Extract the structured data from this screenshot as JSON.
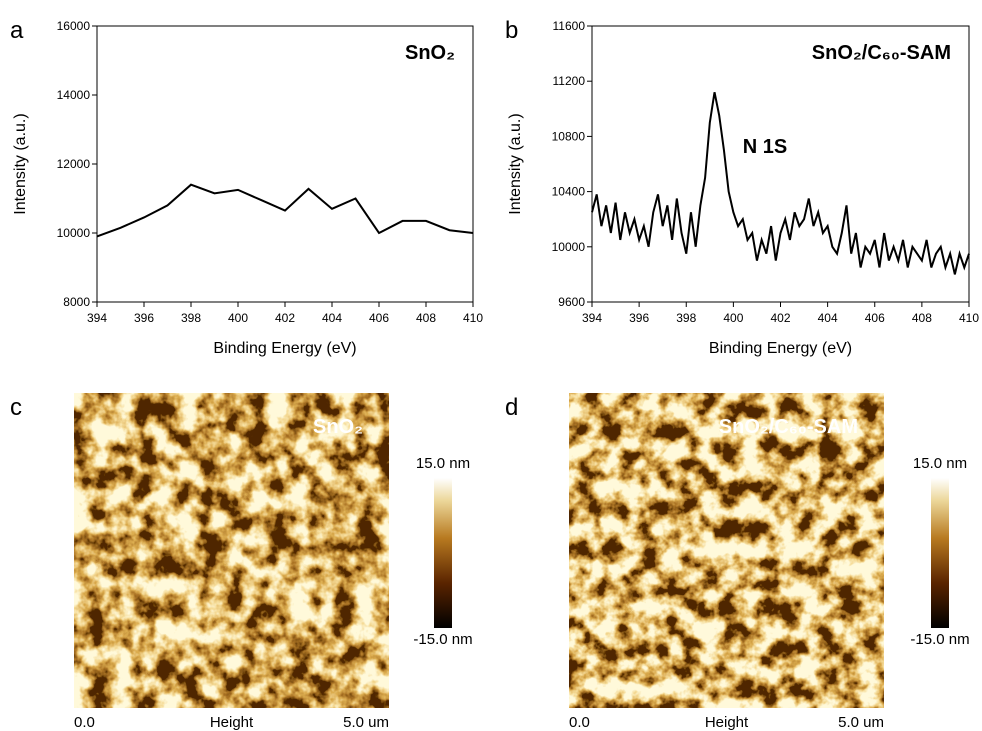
{
  "chart_data": [
    {
      "type": "line",
      "panel": "a",
      "title": "SnO₂",
      "xlabel": "Binding Energy (eV)",
      "ylabel": "Intensity (a.u.)",
      "color": "#000000",
      "x": [
        394,
        395,
        396,
        397,
        398,
        399,
        400,
        401,
        402,
        403,
        404,
        405,
        406,
        407,
        408,
        409,
        410
      ],
      "values": [
        9900,
        10150,
        10450,
        10800,
        11400,
        11150,
        11250,
        10950,
        10650,
        11280,
        10700,
        11000,
        10000,
        10350,
        10350,
        10080,
        10000
      ],
      "xlim": [
        394,
        410
      ],
      "xticks": [
        394,
        396,
        398,
        400,
        402,
        404,
        406,
        408,
        410
      ],
      "ylim": [
        8000,
        16000
      ],
      "yticks": [
        8000,
        10000,
        12000,
        14000,
        16000
      ]
    },
    {
      "type": "line",
      "panel": "b",
      "title": "SnO₂/C₆₀-SAM",
      "annotation": "N 1S",
      "xlabel": "Binding Energy (eV)",
      "ylabel": "Intensity (a.u.)",
      "color": "#000000",
      "x": [
        394,
        394.2,
        394.4,
        394.6,
        394.8,
        395,
        395.2,
        395.4,
        395.6,
        395.8,
        396,
        396.2,
        396.4,
        396.6,
        396.8,
        397,
        397.2,
        397.4,
        397.6,
        397.8,
        398,
        398.2,
        398.4,
        398.6,
        398.8,
        399,
        399.2,
        399.4,
        399.6,
        399.8,
        400,
        400.2,
        400.4,
        400.6,
        400.8,
        401,
        401.2,
        401.4,
        401.6,
        401.8,
        402,
        402.2,
        402.4,
        402.6,
        402.8,
        403,
        403.2,
        403.4,
        403.6,
        403.8,
        404,
        404.2,
        404.4,
        404.6,
        404.8,
        405,
        405.2,
        405.4,
        405.6,
        405.8,
        406,
        406.2,
        406.4,
        406.6,
        406.8,
        407,
        407.2,
        407.4,
        407.6,
        407.8,
        408,
        408.2,
        408.4,
        408.6,
        408.8,
        409,
        409.2,
        409.4,
        409.6,
        409.8,
        410
      ],
      "values": [
        10250,
        10380,
        10150,
        10300,
        10100,
        10320,
        10050,
        10250,
        10100,
        10200,
        10050,
        10150,
        10000,
        10250,
        10380,
        10150,
        10300,
        10050,
        10350,
        10100,
        9950,
        10250,
        10000,
        10300,
        10500,
        10900,
        11120,
        10950,
        10700,
        10400,
        10250,
        10150,
        10200,
        10050,
        10100,
        9900,
        10050,
        9950,
        10150,
        9900,
        10100,
        10200,
        10050,
        10250,
        10150,
        10200,
        10350,
        10150,
        10250,
        10100,
        10150,
        10000,
        9950,
        10100,
        10300,
        9950,
        10100,
        9850,
        10000,
        9950,
        10050,
        9850,
        10100,
        9900,
        10000,
        9900,
        10050,
        9850,
        10000,
        9950,
        9900,
        10050,
        9850,
        9950,
        10000,
        9850,
        9950,
        9800,
        9950,
        9850,
        9950
      ],
      "xlim": [
        394,
        410
      ],
      "xticks": [
        394,
        396,
        398,
        400,
        402,
        404,
        406,
        408,
        410
      ],
      "ylim": [
        9600,
        11600
      ],
      "yticks": [
        9600,
        10000,
        10400,
        10800,
        11200,
        11600
      ]
    }
  ],
  "images": [
    {
      "panel": "c",
      "label": "SnO₂",
      "scale_max": "15.0 nm",
      "scale_min": "-15.0 nm",
      "x_start": "0.0",
      "x_label": "Height",
      "x_end": "5.0 um"
    },
    {
      "panel": "d",
      "label": "SnO₂/C₆₀-SAM",
      "scale_max": "15.0 nm",
      "scale_min": "-15.0 nm",
      "x_start": "0.0",
      "x_label": "Height",
      "x_end": "5.0 um"
    }
  ]
}
